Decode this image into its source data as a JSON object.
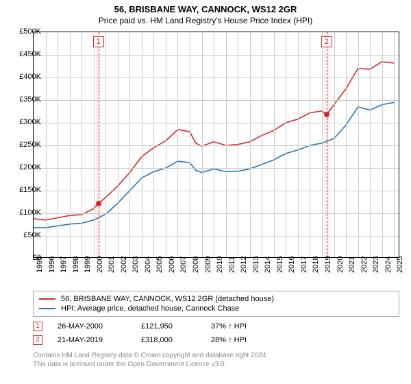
{
  "title_line1": "56, BRISBANE WAY, CANNOCK, WS12 2GR",
  "title_line2": "Price paid vs. HM Land Registry's House Price Index (HPI)",
  "chart": {
    "type": "line",
    "background_color": "#ffffff",
    "grid_color": "#cccccc",
    "x_years": [
      1995,
      1996,
      1997,
      1998,
      1999,
      2000,
      2001,
      2002,
      2003,
      2004,
      2005,
      2006,
      2007,
      2008,
      2009,
      2010,
      2011,
      2012,
      2013,
      2014,
      2015,
      2016,
      2017,
      2018,
      2019,
      2020,
      2021,
      2022,
      2023,
      2024,
      2025
    ],
    "xlim": [
      1995,
      2025.5
    ],
    "ylim": [
      0,
      500000
    ],
    "ytick_step": 50000,
    "ytick_labels": [
      "£0",
      "£50K",
      "£100K",
      "£150K",
      "£200K",
      "£250K",
      "£300K",
      "£350K",
      "£400K",
      "£450K",
      "£500K"
    ],
    "series": [
      {
        "name": "56, BRISBANE WAY, CANNOCK, WS12 2GR (detached house)",
        "color": "#d62728",
        "line_width": 1.6,
        "data": [
          [
            1995,
            88000
          ],
          [
            1996,
            85000
          ],
          [
            1997,
            90000
          ],
          [
            1998,
            95000
          ],
          [
            1999,
            97000
          ],
          [
            2000,
            110000
          ],
          [
            2000.4,
            121950
          ],
          [
            2001,
            135000
          ],
          [
            2002,
            160000
          ],
          [
            2003,
            190000
          ],
          [
            2004,
            225000
          ],
          [
            2005,
            245000
          ],
          [
            2006,
            260000
          ],
          [
            2007,
            285000
          ],
          [
            2008,
            280000
          ],
          [
            2008.5,
            255000
          ],
          [
            2009,
            248000
          ],
          [
            2010,
            258000
          ],
          [
            2011,
            250000
          ],
          [
            2012,
            252000
          ],
          [
            2013,
            258000
          ],
          [
            2014,
            272000
          ],
          [
            2015,
            283000
          ],
          [
            2016,
            300000
          ],
          [
            2017,
            308000
          ],
          [
            2018,
            322000
          ],
          [
            2019,
            326000
          ],
          [
            2019.4,
            318000
          ],
          [
            2020,
            340000
          ],
          [
            2021,
            375000
          ],
          [
            2022,
            420000
          ],
          [
            2023,
            418000
          ],
          [
            2024,
            435000
          ],
          [
            2025,
            432000
          ]
        ]
      },
      {
        "name": "HPI: Average price, detached house, Cannock Chase",
        "color": "#1f77b4",
        "line_width": 1.6,
        "data": [
          [
            1995,
            68000
          ],
          [
            1996,
            68000
          ],
          [
            1997,
            72000
          ],
          [
            1998,
            76000
          ],
          [
            1999,
            78000
          ],
          [
            2000,
            85000
          ],
          [
            2001,
            98000
          ],
          [
            2002,
            122000
          ],
          [
            2003,
            150000
          ],
          [
            2004,
            178000
          ],
          [
            2005,
            192000
          ],
          [
            2006,
            200000
          ],
          [
            2007,
            215000
          ],
          [
            2008,
            212000
          ],
          [
            2008.5,
            195000
          ],
          [
            2009,
            190000
          ],
          [
            2010,
            198000
          ],
          [
            2011,
            192000
          ],
          [
            2012,
            193000
          ],
          [
            2013,
            198000
          ],
          [
            2014,
            208000
          ],
          [
            2015,
            218000
          ],
          [
            2016,
            232000
          ],
          [
            2017,
            240000
          ],
          [
            2018,
            250000
          ],
          [
            2019,
            255000
          ],
          [
            2020,
            265000
          ],
          [
            2021,
            295000
          ],
          [
            2022,
            335000
          ],
          [
            2023,
            328000
          ],
          [
            2024,
            340000
          ],
          [
            2025,
            345000
          ]
        ]
      }
    ],
    "sale_markers": [
      {
        "n": "1",
        "x": 2000.4,
        "y": 121950,
        "band_width_years": 0.2
      },
      {
        "n": "2",
        "x": 2019.39,
        "y": 318000,
        "band_width_years": 0.2
      }
    ]
  },
  "legend": {
    "items": [
      {
        "color": "#d62728",
        "label": "56, BRISBANE WAY, CANNOCK, WS12 2GR (detached house)"
      },
      {
        "color": "#1f77b4",
        "label": "HPI: Average price, detached house, Cannock Chase"
      }
    ]
  },
  "sales": [
    {
      "n": "1",
      "date": "26-MAY-2000",
      "price": "£121,950",
      "delta": "37% ↑ HPI"
    },
    {
      "n": "2",
      "date": "21-MAY-2019",
      "price": "£318,000",
      "delta": "28% ↑ HPI"
    }
  ],
  "attribution_line1": "Contains HM Land Registry data © Crown copyright and database right 2024.",
  "attribution_line2": "This data is licensed under the Open Government Licence v3.0."
}
